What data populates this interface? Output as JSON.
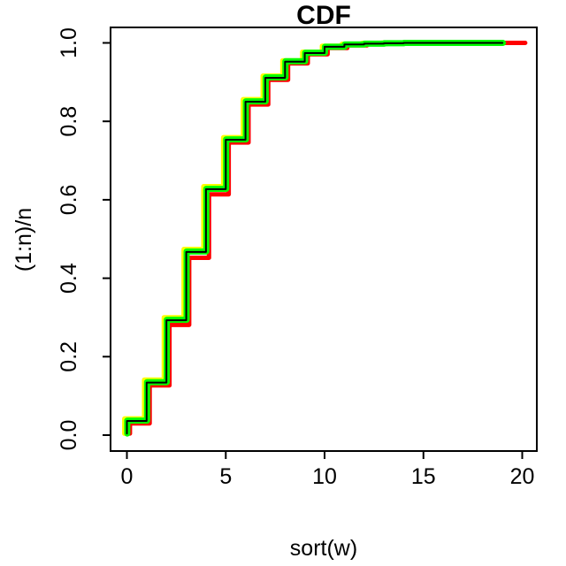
{
  "figure": {
    "title": "CDF",
    "x_axis": {
      "label": "sort(w)",
      "ticks": [
        "0",
        "5",
        "10",
        "15",
        "20"
      ],
      "tick_values": [
        0,
        5,
        10,
        15,
        20
      ]
    },
    "y_axis": {
      "label": "(1:n)/n",
      "ticks": [
        "0.0",
        "0.2",
        "0.4",
        "0.6",
        "0.8",
        "1.0"
      ],
      "tick_values": [
        0,
        0.2,
        0.4,
        0.6,
        0.8,
        1.0
      ]
    }
  },
  "chart_data": {
    "type": "line",
    "style": "step-ecdf",
    "title": "CDF",
    "xlabel": "sort(w)",
    "ylabel": "(1:n)/n",
    "xlim": [
      0,
      20
    ],
    "ylim": [
      0,
      1
    ],
    "grid": false,
    "legend": false,
    "background": "#FFFFFF",
    "frame_color": "#000000",
    "series": [
      {
        "name": "red",
        "color": "#FF0000",
        "line_width": 5,
        "x_offset": 0.15,
        "y_start": 0.004,
        "x": [
          0,
          1,
          2,
          3,
          4,
          5,
          6,
          7,
          8,
          9,
          10,
          11,
          12,
          13,
          14,
          15,
          16,
          17,
          18,
          19,
          20
        ],
        "y": [
          0.03,
          0.127,
          0.281,
          0.452,
          0.614,
          0.746,
          0.843,
          0.906,
          0.948,
          0.971,
          0.987,
          0.994,
          0.997,
          0.998,
          0.999,
          1.0,
          1.0,
          1.0,
          1.0,
          1.0,
          1.0
        ]
      },
      {
        "name": "yellow",
        "color": "#FFFF00",
        "line_width": 5.5,
        "x_offset": -0.12,
        "y_start": 0.004,
        "x": [
          0,
          1,
          2,
          3,
          4,
          5,
          6,
          7,
          8,
          9,
          10,
          11,
          12,
          13,
          14,
          15,
          16,
          17,
          18,
          19
        ],
        "y": [
          0.042,
          0.141,
          0.3,
          0.474,
          0.634,
          0.759,
          0.856,
          0.916,
          0.955,
          0.977,
          0.992,
          0.997,
          0.999,
          1.0,
          1.0,
          1.0,
          1.0,
          1.0,
          1.0,
          1.0
        ]
      },
      {
        "name": "green",
        "color": "#00FF00",
        "line_width": 7,
        "x_offset": 0.02,
        "y_start": 0.004,
        "x": [
          0,
          1,
          2,
          3,
          4,
          5,
          6,
          7,
          8,
          9,
          10,
          11,
          12,
          13,
          14,
          15,
          16,
          17,
          18,
          19
        ],
        "y": [
          0.037,
          0.135,
          0.294,
          0.468,
          0.628,
          0.754,
          0.851,
          0.912,
          0.953,
          0.975,
          0.99,
          0.996,
          0.998,
          0.999,
          1.0,
          1.0,
          1.0,
          1.0,
          1.0,
          1.0
        ]
      },
      {
        "name": "black",
        "color": "#000000",
        "line_width": 2,
        "x_offset": 0,
        "y_start": 0.004,
        "x": [
          0,
          1,
          2,
          3,
          4,
          5,
          6,
          7,
          8,
          9,
          10,
          11,
          12,
          13,
          14,
          15,
          16,
          17,
          18,
          19
        ],
        "y": [
          0.036,
          0.134,
          0.293,
          0.467,
          0.627,
          0.753,
          0.85,
          0.911,
          0.952,
          0.974,
          0.99,
          0.996,
          0.998,
          0.999,
          1.0,
          1.0,
          1.0,
          1.0,
          1.0,
          1.0
        ]
      }
    ]
  }
}
